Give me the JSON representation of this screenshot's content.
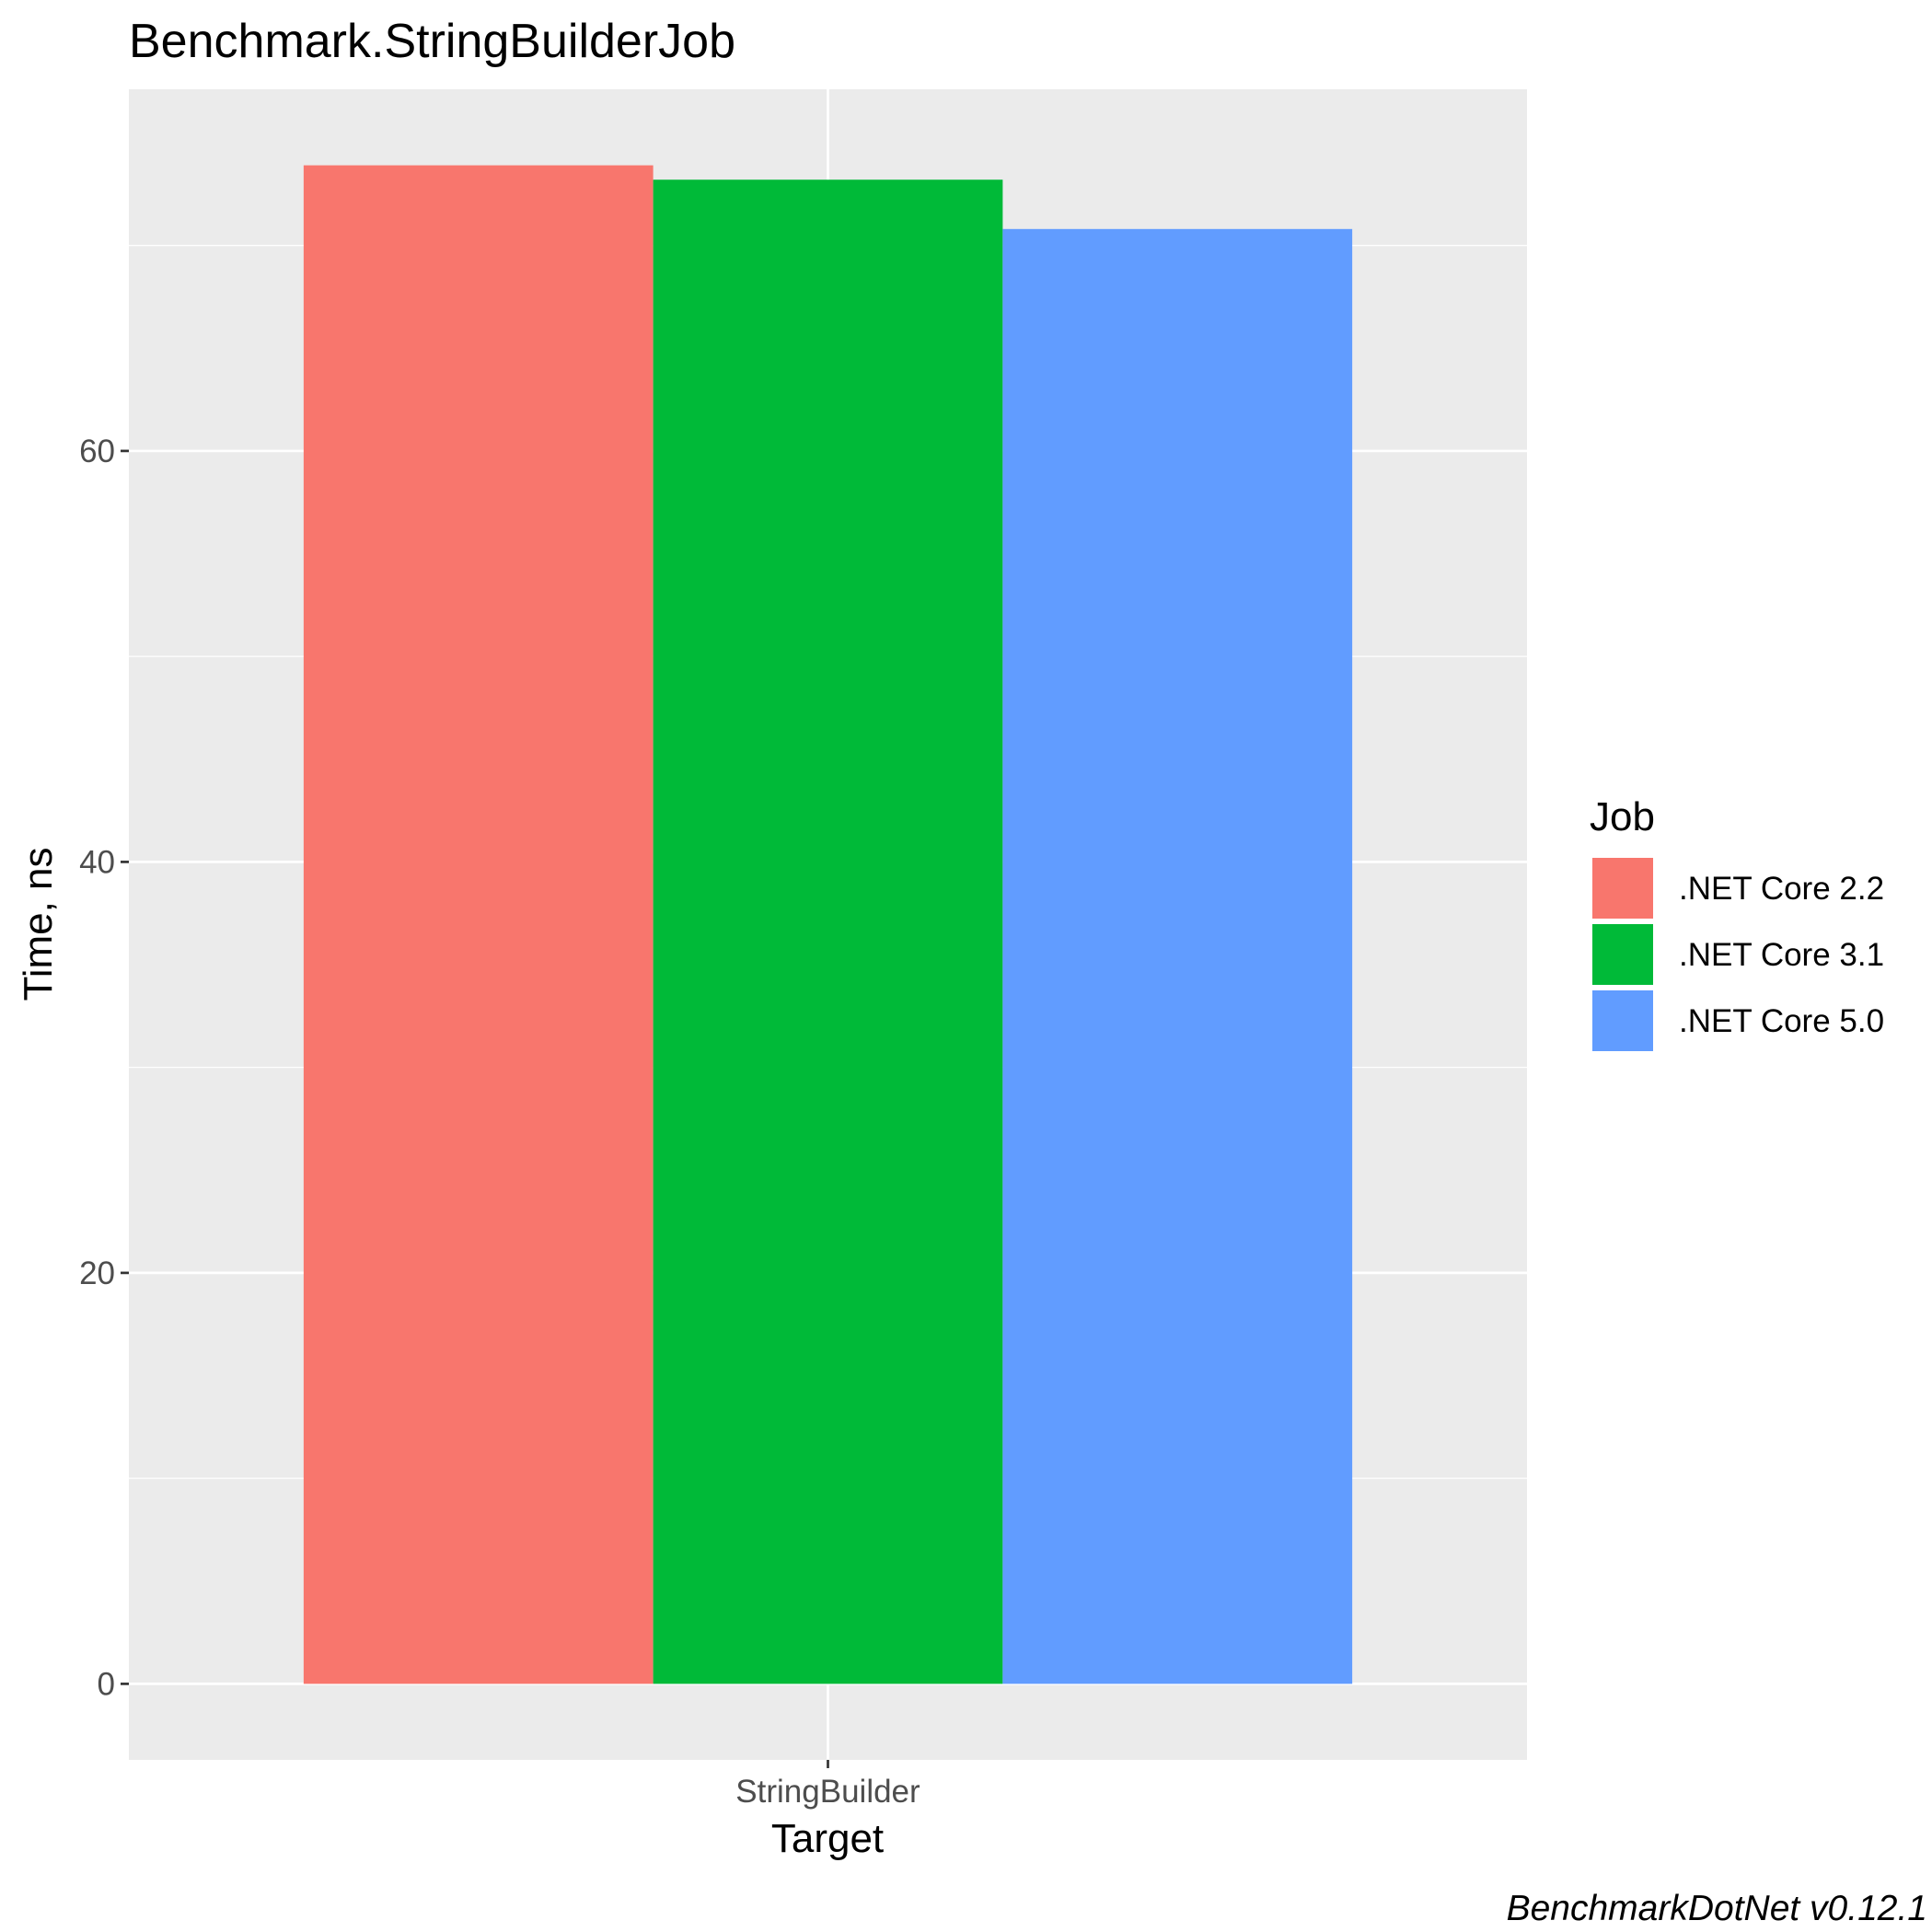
{
  "chart_data": {
    "type": "bar",
    "title": "Benchmark.StringBuilderJob",
    "xlabel": "Target",
    "ylabel": "Time, ns",
    "categories": [
      "StringBuilder"
    ],
    "series": [
      {
        "name": ".NET Core 2.2",
        "color": "#F8766D",
        "values": [
          73.9
        ]
      },
      {
        "name": ".NET Core 3.1",
        "color": "#00BA38",
        "values": [
          73.2
        ]
      },
      {
        "name": ".NET Core 5.0",
        "color": "#619CFF",
        "values": [
          70.8
        ]
      }
    ],
    "ylim": [
      -3.7,
      77.6
    ],
    "yticks": [
      0,
      20,
      40,
      60
    ],
    "ytick_labels": [
      "0",
      "20",
      "40",
      "60"
    ],
    "grid": true,
    "legend": {
      "title": "Job",
      "position": "right"
    },
    "caption": "BenchmarkDotNet v0.12.1"
  }
}
